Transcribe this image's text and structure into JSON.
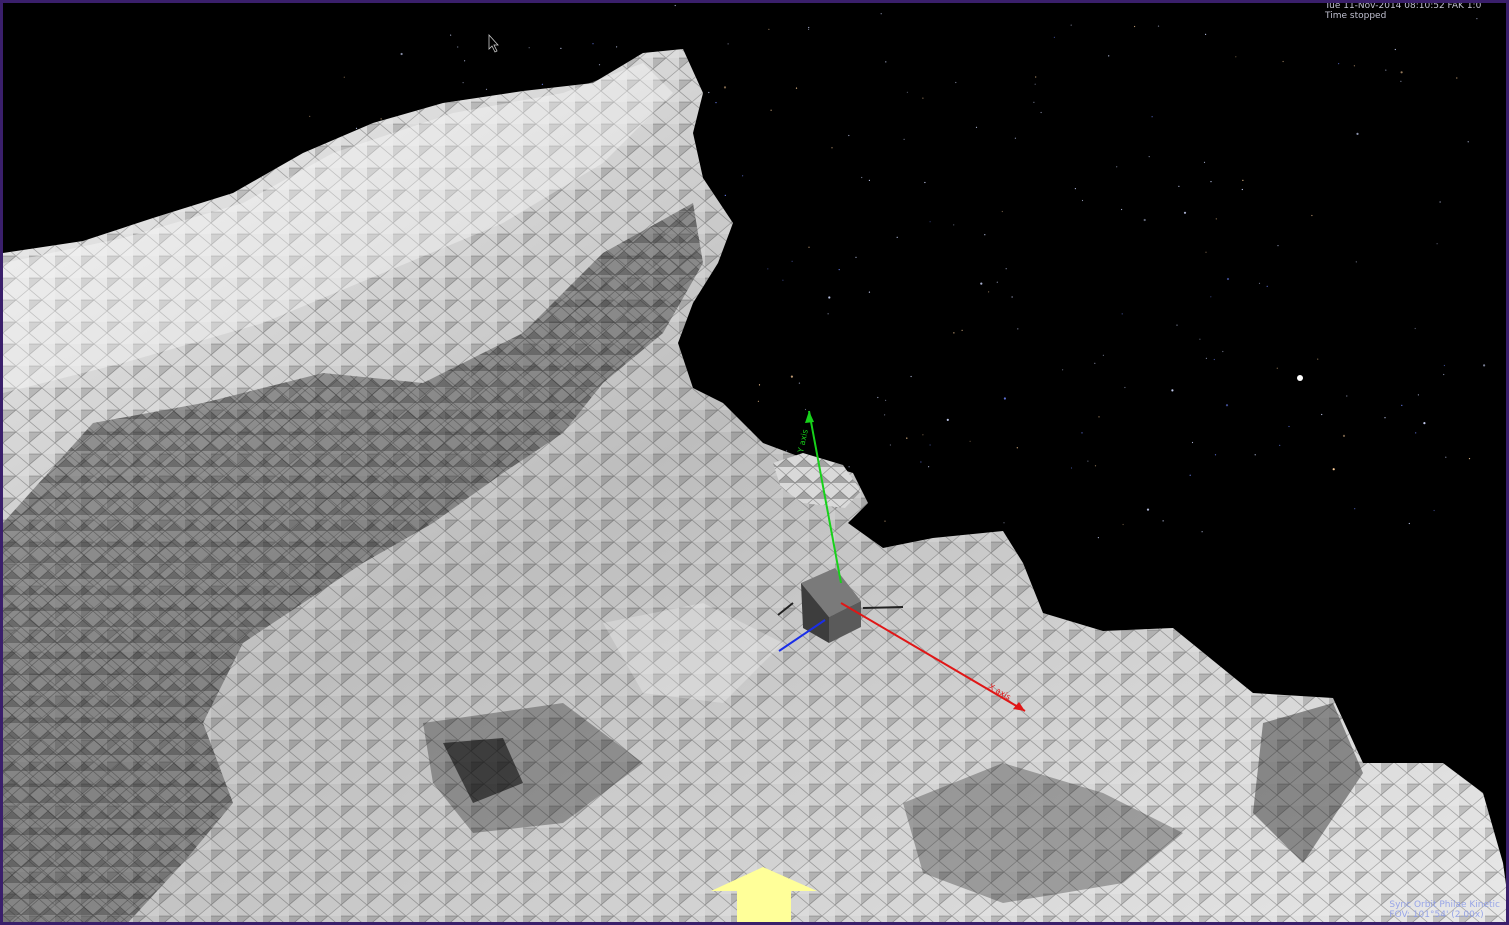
{
  "hud": {
    "time_line": "Tue 11-Nov-2014 08:10:52 FAK 1:0",
    "time_status": "Time stopped",
    "sync_line": "Sync Orbit Philae Kinetic",
    "fov_line": "FOV: 101°54' (2.00x)"
  },
  "axes": {
    "x_label": "X axis",
    "y_label": "Y axis"
  },
  "colors": {
    "frame": "#3a1f6b",
    "x_axis": "#e01616",
    "y_axis": "#17d11a",
    "z_axis": "#1a2ee8",
    "indicator_arrow": "#ffff99"
  }
}
